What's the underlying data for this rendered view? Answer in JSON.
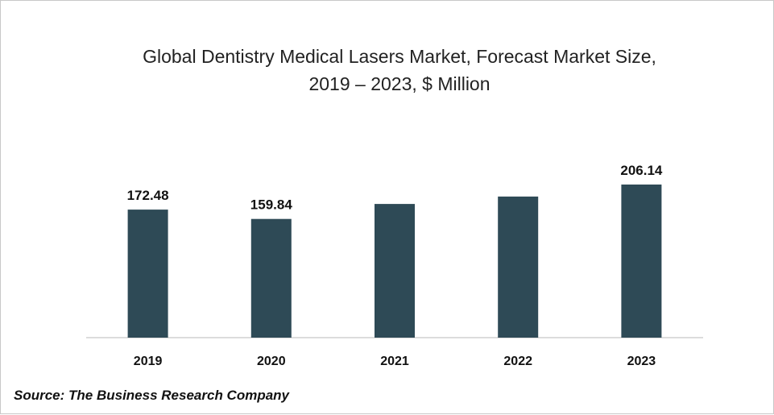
{
  "chart_data": {
    "type": "bar",
    "title_line1": "Global Dentistry Medical Lasers Market, Forecast Market Size,",
    "title_line2": "2019 – 2023, $ Million",
    "categories": [
      "2019",
      "2020",
      "2021",
      "2022",
      "2023"
    ],
    "values": [
      172.48,
      159.84,
      180,
      190,
      206.14
    ],
    "data_labels": [
      "172.48",
      "159.84",
      "",
      "",
      "206.14"
    ],
    "xlabel": "",
    "ylabel": "",
    "ylim": [
      0,
      210
    ],
    "grid": false,
    "legend": "none",
    "bar_color": "#2e4a56",
    "axis_color": "#d0d0d0"
  },
  "source": "Source: The Business Research Company"
}
